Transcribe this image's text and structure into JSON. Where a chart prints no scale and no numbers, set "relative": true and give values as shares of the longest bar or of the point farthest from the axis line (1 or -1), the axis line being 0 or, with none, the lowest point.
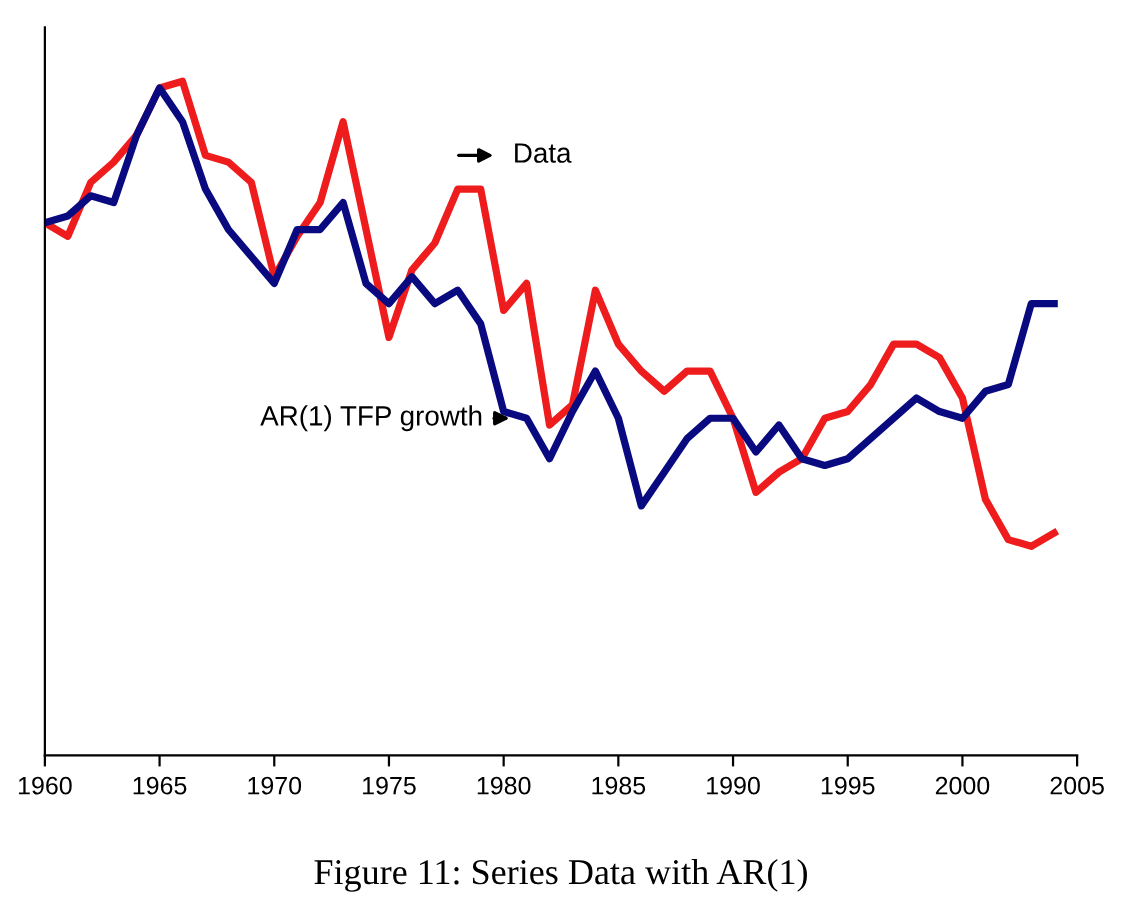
{
  "chart_data": {
    "type": "line",
    "relative": true,
    "x": [
      1960,
      1961,
      1962,
      1963,
      1964,
      1965,
      1966,
      1967,
      1968,
      1969,
      1970,
      1971,
      1972,
      1973,
      1974,
      1975,
      1976,
      1977,
      1978,
      1979,
      1980,
      1981,
      1982,
      1983,
      1984,
      1985,
      1986,
      1987,
      1988,
      1989,
      1990,
      1991,
      1992,
      1993,
      1994,
      1995,
      1996,
      1997,
      1998,
      1999,
      2000,
      2001,
      2002,
      2003,
      2004
    ],
    "xlim": [
      1960,
      2005
    ],
    "xticks": [
      1960,
      1965,
      1970,
      1975,
      1980,
      1985,
      1990,
      1995,
      2000,
      2005
    ],
    "series": [
      {
        "name": "Data",
        "color": "#ee1c1c",
        "values": [
          0.79,
          0.77,
          0.85,
          0.88,
          0.92,
          0.99,
          1.0,
          0.89,
          0.88,
          0.85,
          0.71,
          0.77,
          0.82,
          0.94,
          0.78,
          0.62,
          0.72,
          0.76,
          0.84,
          0.84,
          0.66,
          0.7,
          0.49,
          0.52,
          0.69,
          0.61,
          0.57,
          0.54,
          0.57,
          0.57,
          0.5,
          0.39,
          0.42,
          0.44,
          0.5,
          0.51,
          0.55,
          0.61,
          0.61,
          0.59,
          0.53,
          0.38,
          0.32,
          0.31,
          0.33
        ]
      },
      {
        "name": "AR(1) TFP growth",
        "color": "#0a0a80",
        "values": [
          0.79,
          0.8,
          0.83,
          0.82,
          0.92,
          0.99,
          0.94,
          0.84,
          0.78,
          0.74,
          0.7,
          0.78,
          0.78,
          0.82,
          0.7,
          0.67,
          0.71,
          0.67,
          0.69,
          0.64,
          0.51,
          0.5,
          0.44,
          0.51,
          0.57,
          0.5,
          0.37,
          0.42,
          0.47,
          0.5,
          0.5,
          0.45,
          0.49,
          0.44,
          0.43,
          0.44,
          0.47,
          0.5,
          0.53,
          0.51,
          0.5,
          0.54,
          0.55,
          0.67,
          0.67
        ]
      }
    ],
    "annotations": [
      "Figure 11: Series Data with AR(1)"
    ],
    "grid": false,
    "legend": false,
    "line_style": "solid",
    "marker": "none"
  }
}
